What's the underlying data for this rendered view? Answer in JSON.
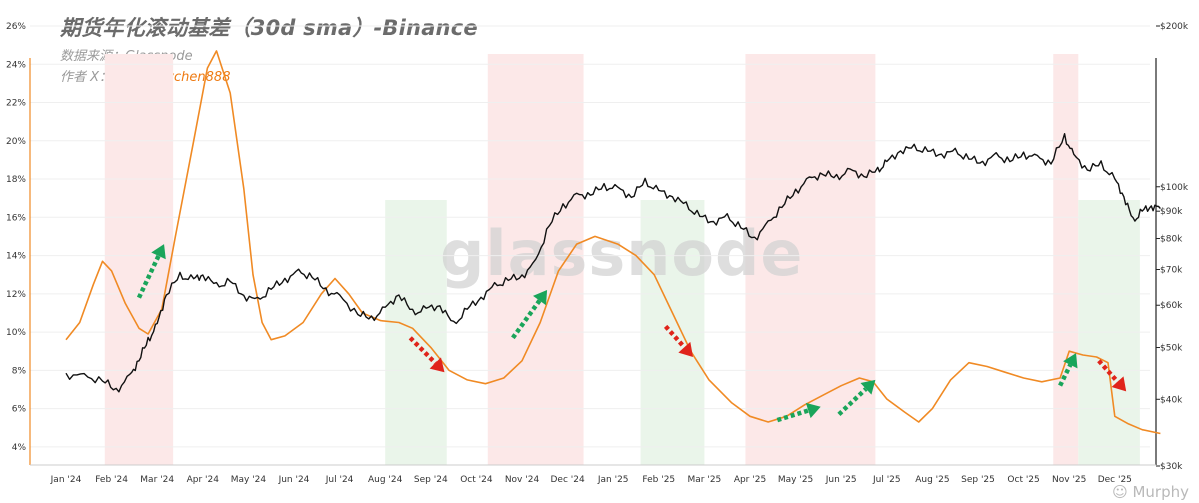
{
  "header": {
    "title": "期货年化滚动基差（30d sma）-Binance",
    "source": "数据来源：Glassnode",
    "author_prefix": "作者 X：",
    "author_handle": "@Murphychen888"
  },
  "watermark": "glassnode",
  "footer_logo": "Murphy",
  "colors": {
    "basis_line": "#f08a24",
    "price_line": "#111111",
    "red_band": "#fce8e8",
    "green_band": "#eaf5ea",
    "up_arrow": "#1aa55a",
    "down_arrow": "#e0241b"
  },
  "chart_data": {
    "type": "line",
    "x_ticks": [
      "Jan '24",
      "Feb '24",
      "Mar '24",
      "Apr '24",
      "May '24",
      "Jun '24",
      "Jul '24",
      "Aug '24",
      "Sep '24",
      "Oct '24",
      "Nov '24",
      "Dec '24",
      "Jan '25",
      "Feb '25",
      "Mar '25",
      "Apr '25",
      "May '25",
      "Jun '25",
      "Jul '25",
      "Aug '25",
      "Sep '25",
      "Oct '25",
      "Nov '25",
      "Dec '25"
    ],
    "y_left": {
      "ticks": [
        "4%",
        "6%",
        "8%",
        "10%",
        "12%",
        "14%",
        "16%",
        "18%",
        "20%",
        "22%",
        "24%",
        "26%"
      ],
      "range": [
        3,
        26
      ]
    },
    "y_right": {
      "ticks": [
        "$30k",
        "$40k",
        "$50k",
        "$60k",
        "$70k",
        "$80k",
        "$90k",
        "$100k",
        "$200k"
      ],
      "scale": "log",
      "range": [
        30000,
        200000
      ]
    },
    "series": [
      {
        "axis": "left",
        "unit": "%",
        "points": [
          [
            0,
            9.6
          ],
          [
            0.3,
            10.5
          ],
          [
            0.6,
            12.5
          ],
          [
            0.8,
            13.7
          ],
          [
            1.0,
            13.2
          ],
          [
            1.3,
            11.5
          ],
          [
            1.6,
            10.2
          ],
          [
            1.8,
            9.9
          ],
          [
            2.1,
            11.2
          ],
          [
            2.4,
            15.0
          ],
          [
            2.8,
            20.0
          ],
          [
            3.1,
            23.8
          ],
          [
            3.3,
            24.7
          ],
          [
            3.6,
            22.5
          ],
          [
            3.9,
            17.5
          ],
          [
            4.1,
            13.0
          ],
          [
            4.3,
            10.5
          ],
          [
            4.5,
            9.6
          ],
          [
            4.8,
            9.8
          ],
          [
            5.2,
            10.5
          ],
          [
            5.6,
            12.0
          ],
          [
            5.9,
            12.8
          ],
          [
            6.2,
            12.0
          ],
          [
            6.5,
            11.0
          ],
          [
            6.9,
            10.6
          ],
          [
            7.3,
            10.5
          ],
          [
            7.6,
            10.2
          ],
          [
            8.0,
            9.2
          ],
          [
            8.4,
            8.0
          ],
          [
            8.8,
            7.5
          ],
          [
            9.2,
            7.3
          ],
          [
            9.6,
            7.6
          ],
          [
            10.0,
            8.5
          ],
          [
            10.4,
            10.5
          ],
          [
            10.8,
            13.2
          ],
          [
            11.2,
            14.6
          ],
          [
            11.6,
            15.0
          ],
          [
            12.1,
            14.6
          ],
          [
            12.5,
            14.0
          ],
          [
            12.9,
            13.0
          ],
          [
            13.3,
            11.0
          ],
          [
            13.7,
            9.0
          ],
          [
            14.1,
            7.5
          ],
          [
            14.6,
            6.3
          ],
          [
            15.0,
            5.6
          ],
          [
            15.4,
            5.3
          ],
          [
            15.8,
            5.6
          ],
          [
            16.2,
            6.2
          ],
          [
            16.6,
            6.7
          ],
          [
            17.0,
            7.2
          ],
          [
            17.4,
            7.6
          ],
          [
            17.7,
            7.4
          ],
          [
            18.0,
            6.5
          ],
          [
            18.4,
            5.8
          ],
          [
            18.7,
            5.3
          ],
          [
            19.0,
            6.0
          ],
          [
            19.4,
            7.5
          ],
          [
            19.8,
            8.4
          ],
          [
            20.2,
            8.2
          ],
          [
            20.6,
            7.9
          ],
          [
            21.0,
            7.6
          ],
          [
            21.4,
            7.4
          ],
          [
            21.8,
            7.6
          ],
          [
            22.0,
            9.0
          ],
          [
            22.3,
            8.8
          ],
          [
            22.6,
            8.7
          ],
          [
            22.85,
            8.4
          ],
          [
            23.0,
            5.6
          ],
          [
            23.3,
            5.2
          ],
          [
            23.6,
            4.9
          ],
          [
            24.0,
            4.7
          ]
        ]
      },
      {
        "axis": "right",
        "unit": "$",
        "points": [
          [
            0,
            44500
          ],
          [
            0.4,
            44000
          ],
          [
            0.8,
            43500
          ],
          [
            1.1,
            41500
          ],
          [
            1.4,
            44000
          ],
          [
            1.6,
            47500
          ],
          [
            1.8,
            51500
          ],
          [
            2.0,
            55000
          ],
          [
            2.2,
            63000
          ],
          [
            2.5,
            68000
          ],
          [
            2.8,
            67000
          ],
          [
            3.0,
            68500
          ],
          [
            3.3,
            65000
          ],
          [
            3.6,
            66500
          ],
          [
            3.9,
            62500
          ],
          [
            4.2,
            61000
          ],
          [
            4.5,
            64500
          ],
          [
            4.8,
            67000
          ],
          [
            5.1,
            69000
          ],
          [
            5.4,
            68000
          ],
          [
            5.7,
            64000
          ],
          [
            6.0,
            62000
          ],
          [
            6.4,
            58000
          ],
          [
            6.7,
            56500
          ],
          [
            7.0,
            59000
          ],
          [
            7.3,
            63000
          ],
          [
            7.6,
            58000
          ],
          [
            7.9,
            59000
          ],
          [
            8.2,
            60000
          ],
          [
            8.5,
            55000
          ],
          [
            8.8,
            59000
          ],
          [
            9.1,
            62000
          ],
          [
            9.4,
            65000
          ],
          [
            9.7,
            67000
          ],
          [
            10.0,
            68000
          ],
          [
            10.3,
            72000
          ],
          [
            10.6,
            85000
          ],
          [
            10.9,
            92000
          ],
          [
            11.2,
            96000
          ],
          [
            11.5,
            97000
          ],
          [
            11.8,
            100000
          ],
          [
            12.1,
            99000
          ],
          [
            12.4,
            96000
          ],
          [
            12.7,
            102000
          ],
          [
            13.0,
            98000
          ],
          [
            13.3,
            96000
          ],
          [
            13.6,
            92000
          ],
          [
            13.9,
            88000
          ],
          [
            14.2,
            86000
          ],
          [
            14.5,
            87500
          ],
          [
            14.8,
            84000
          ],
          [
            15.1,
            80000
          ],
          [
            15.4,
            85000
          ],
          [
            15.7,
            92000
          ],
          [
            16.0,
            98000
          ],
          [
            16.3,
            103000
          ],
          [
            16.6,
            106000
          ],
          [
            16.9,
            104000
          ],
          [
            17.2,
            107000
          ],
          [
            17.5,
            105000
          ],
          [
            17.8,
            107000
          ],
          [
            18.0,
            111000
          ],
          [
            18.3,
            117000
          ],
          [
            18.6,
            118000
          ],
          [
            18.9,
            116500
          ],
          [
            19.2,
            115000
          ],
          [
            19.5,
            116000
          ],
          [
            19.8,
            113000
          ],
          [
            20.1,
            111000
          ],
          [
            20.4,
            114000
          ],
          [
            20.7,
            112000
          ],
          [
            21.0,
            115000
          ],
          [
            21.3,
            113000
          ],
          [
            21.6,
            111000
          ],
          [
            21.9,
            124000
          ],
          [
            22.1,
            114000
          ],
          [
            22.4,
            108000
          ],
          [
            22.7,
            110000
          ],
          [
            23.0,
            103000
          ],
          [
            23.2,
            96000
          ],
          [
            23.4,
            86000
          ],
          [
            23.6,
            90000
          ],
          [
            23.8,
            92000
          ],
          [
            24.0,
            91000
          ]
        ]
      }
    ],
    "shaded_regions": [
      {
        "color": "red",
        "from": 0.85,
        "to": 2.35
      },
      {
        "color": "green",
        "from": 7.0,
        "to": 8.35
      },
      {
        "color": "red",
        "from": 9.25,
        "to": 11.35
      },
      {
        "color": "green",
        "from": 12.6,
        "to": 14.0
      },
      {
        "color": "red",
        "from": 14.9,
        "to": 17.75
      },
      {
        "color": "red",
        "from": 21.65,
        "to": 22.2
      },
      {
        "color": "green",
        "from": 22.2,
        "to": 23.55
      }
    ],
    "arrows": [
      {
        "dir": "up",
        "x1": 1.6,
        "y1": 11.8,
        "x2": 2.15,
        "y2": 14.6
      },
      {
        "dir": "up",
        "x1": 9.8,
        "y1": 9.7,
        "x2": 10.55,
        "y2": 12.2
      },
      {
        "dir": "up",
        "x1": 15.6,
        "y1": 5.4,
        "x2": 16.55,
        "y2": 6.1
      },
      {
        "dir": "up",
        "x1": 16.95,
        "y1": 5.7,
        "x2": 17.75,
        "y2": 7.5
      },
      {
        "dir": "up",
        "x1": 21.8,
        "y1": 7.2,
        "x2": 22.15,
        "y2": 8.9
      },
      {
        "dir": "down",
        "x1": 7.55,
        "y1": 9.7,
        "x2": 8.3,
        "y2": 7.9
      },
      {
        "dir": "down",
        "x1": 13.15,
        "y1": 10.3,
        "x2": 13.75,
        "y2": 8.7
      },
      {
        "dir": "down",
        "x1": 22.65,
        "y1": 8.5,
        "x2": 23.25,
        "y2": 6.9
      }
    ]
  }
}
